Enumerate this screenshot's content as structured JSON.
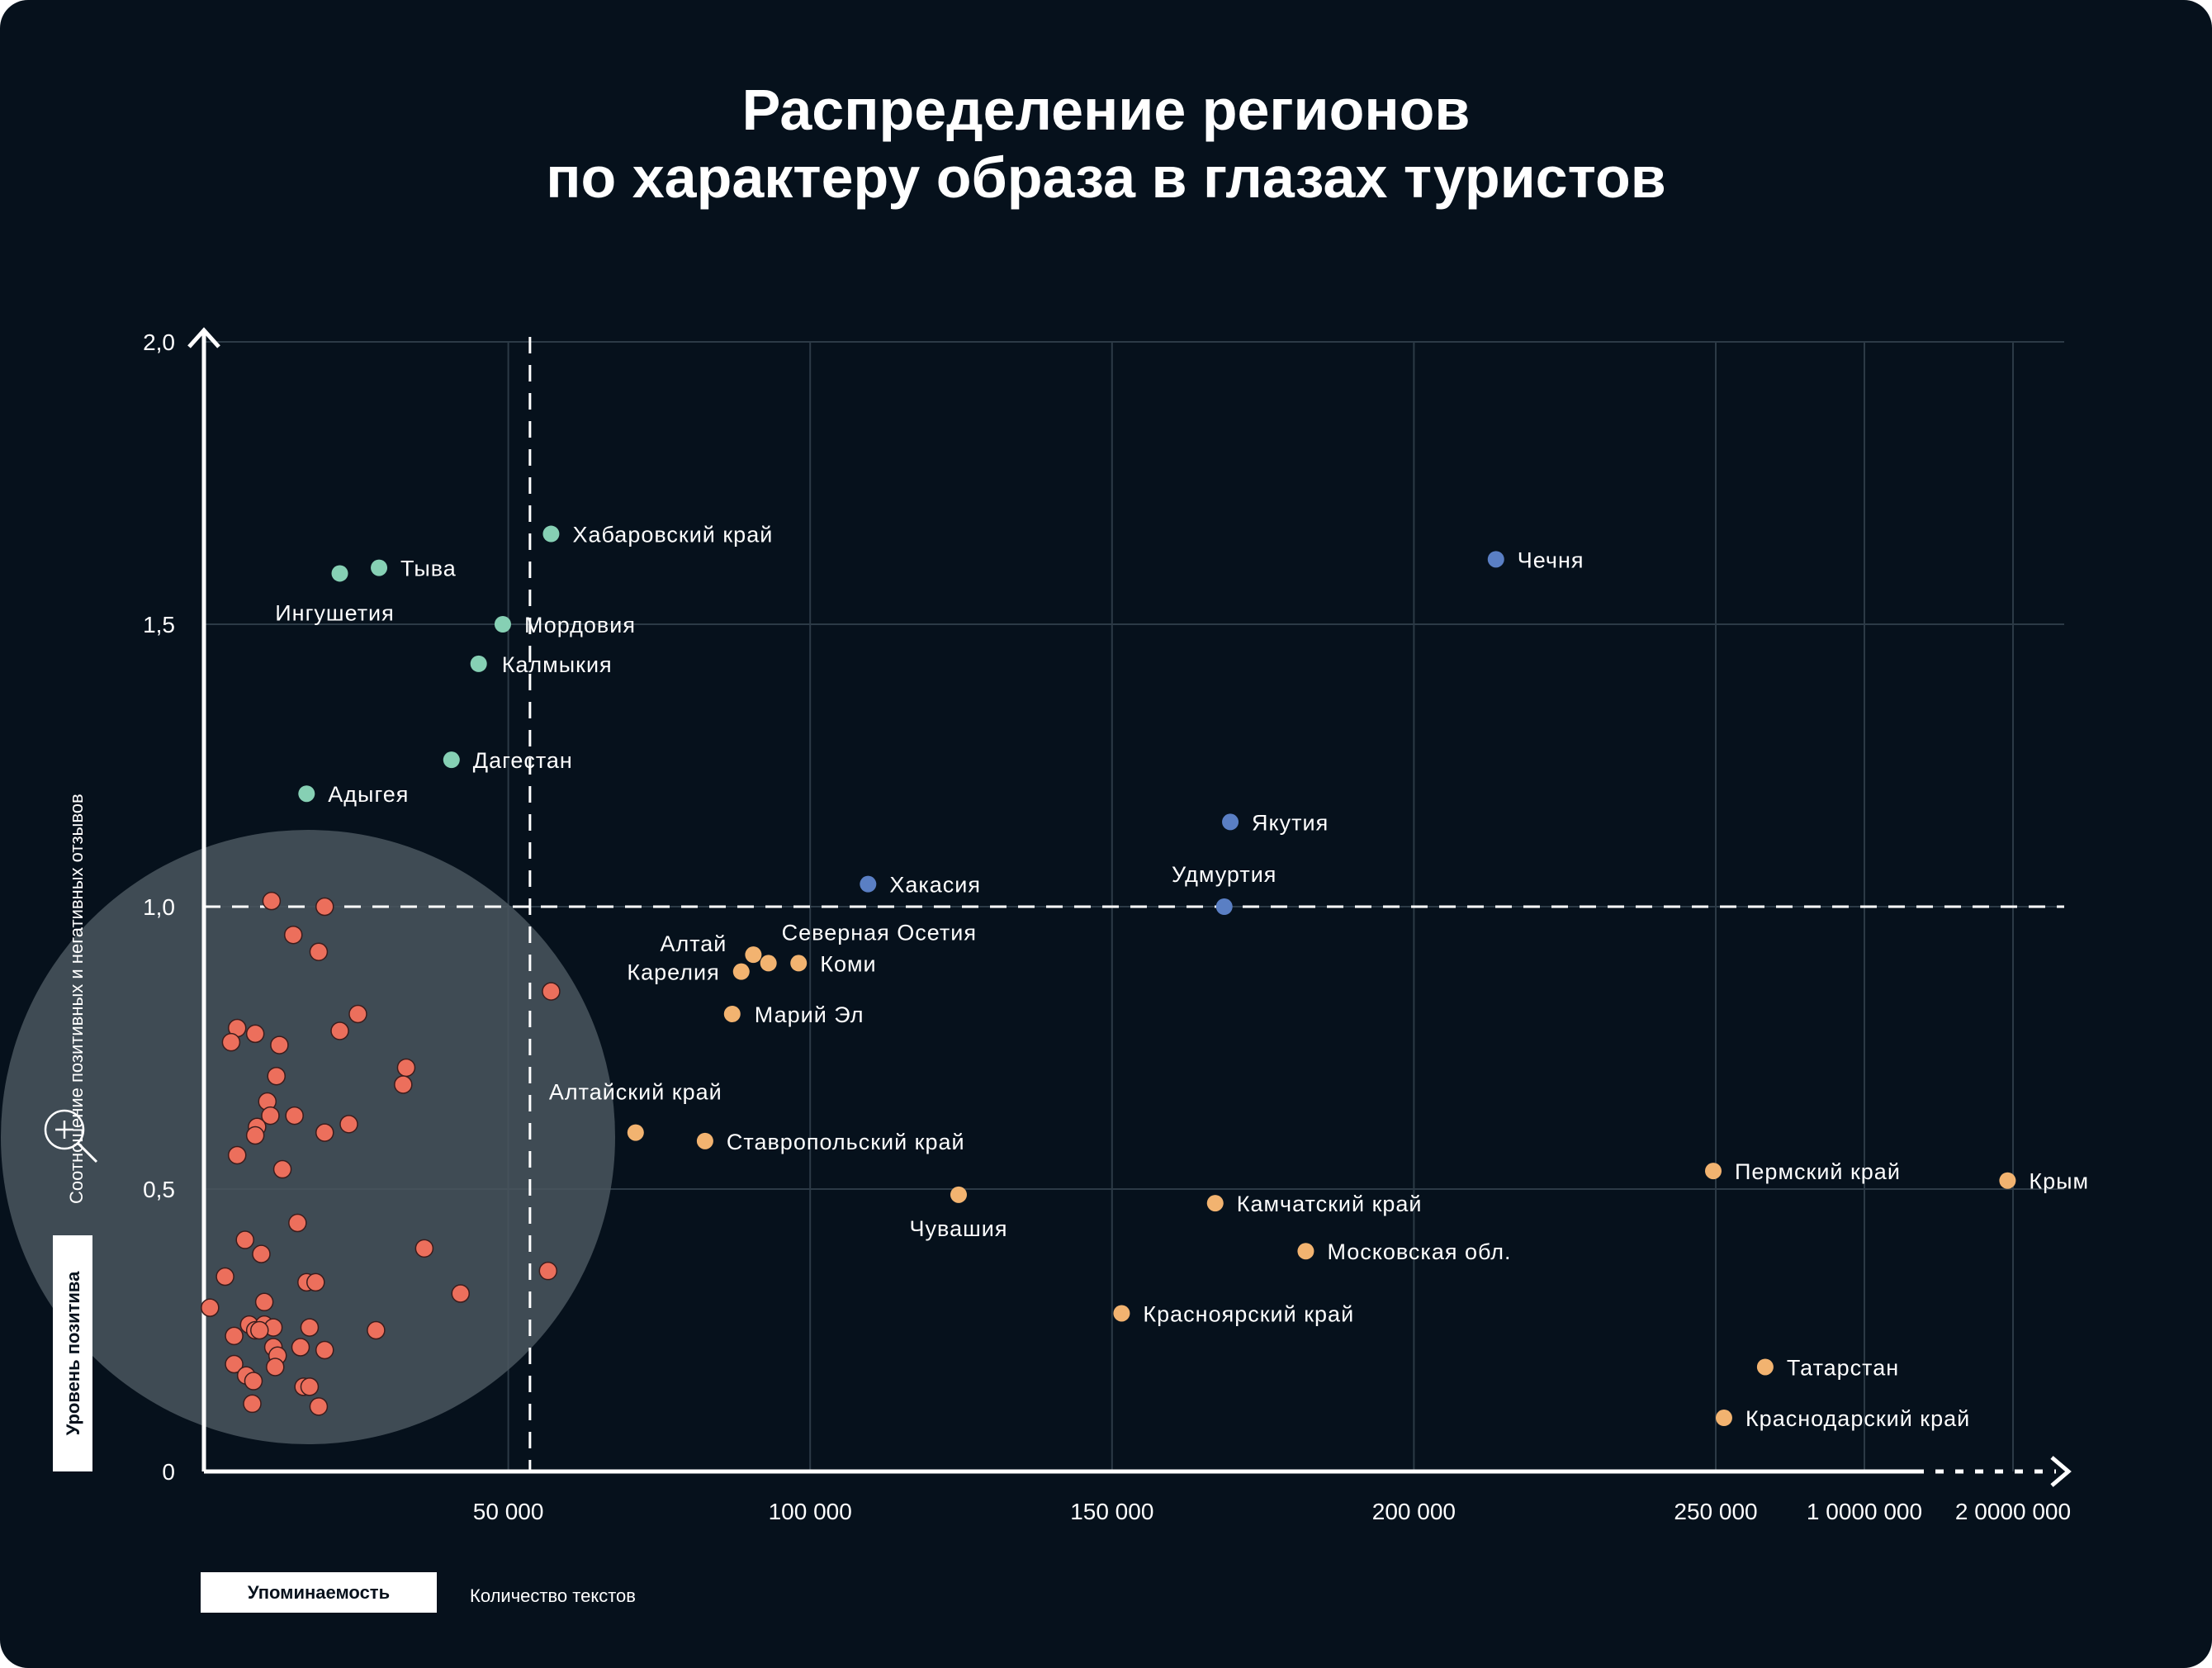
{
  "title_lines": [
    "Распределение регионов",
    "по характеру образа в глазах туристов"
  ],
  "colors": {
    "background": "#06111c",
    "green": "#86d0b4",
    "blue": "#5a7fc4",
    "orange": "#f2b370",
    "red": "#ec6f5c",
    "cluster": "#4a565e"
  },
  "chart_data": {
    "type": "scatter",
    "x_axis": {
      "box_label": "Упоминаемость",
      "caption": "Количество текстов",
      "tick_labels": [
        "50 000",
        "100 000",
        "150 000",
        "200 000",
        "250 000",
        "1 0000 000",
        "2 0000 000"
      ],
      "tick_values": [
        50000,
        100000,
        150000,
        200000,
        250000,
        1000000,
        2000000
      ],
      "scale": "broken: linear up to 250000, then compressed segment to 2000000",
      "xlim": [
        0,
        2000000
      ]
    },
    "y_axis": {
      "box_label": "Уровень позитива",
      "caption": "Соотношение позитивных и негативных отзывов",
      "tick_labels": [
        "0",
        "0,5",
        "1,0",
        "1,5",
        "2,0"
      ],
      "tick_values": [
        0,
        0.5,
        1.0,
        1.5,
        2.0
      ],
      "ylim": [
        0,
        2.0
      ]
    },
    "reference_lines": {
      "x": 54000,
      "y": 1.0
    },
    "grid": true,
    "series": [
      {
        "group": "green",
        "points": [
          {
            "label": "Хабаровский край",
            "x": 57500,
            "y": 1.66
          },
          {
            "label": "Тыва",
            "x": 29000,
            "y": 1.6
          },
          {
            "label": "Ингушетия",
            "x": 22500,
            "y": 1.59
          },
          {
            "label": "Мордовия",
            "x": 49500,
            "y": 1.5
          },
          {
            "label": "Калмыкия",
            "x": 45500,
            "y": 1.43
          },
          {
            "label": "Дагестан",
            "x": 41000,
            "y": 1.26
          },
          {
            "label": "Адыгея",
            "x": 17000,
            "y": 1.2
          }
        ]
      },
      {
        "group": "blue",
        "points": [
          {
            "label": "Чечня",
            "x": 214000,
            "y": 1.615
          },
          {
            "label": "Якутия",
            "x": 170000,
            "y": 1.15
          },
          {
            "label": "Хакасия",
            "x": 110000,
            "y": 1.04
          },
          {
            "label": "Удмуртия",
            "x": 169000,
            "y": 1.0
          }
        ]
      },
      {
        "group": "orange",
        "points": [
          {
            "label": "Алтай",
            "x": 91000,
            "y": 0.915
          },
          {
            "label": "Северная Осетия",
            "x": 93500,
            "y": 0.9
          },
          {
            "label": "Карелия",
            "x": 89000,
            "y": 0.885
          },
          {
            "label": "Коми",
            "x": 98500,
            "y": 0.9
          },
          {
            "label": "Марий Эл",
            "x": 87500,
            "y": 0.81
          },
          {
            "label": "Алтайский край",
            "x": 71500,
            "y": 0.6
          },
          {
            "label": "Ставропольский край",
            "x": 83000,
            "y": 0.585
          },
          {
            "label": "Чувашия",
            "x": 125000,
            "y": 0.49
          },
          {
            "label": "Камчатский край",
            "x": 167500,
            "y": 0.475
          },
          {
            "label": "Московская обл.",
            "x": 182500,
            "y": 0.39
          },
          {
            "label": "Красноярский край",
            "x": 152000,
            "y": 0.28
          },
          {
            "label": "Пермский край",
            "x": 250000,
            "y": 0.532
          },
          {
            "label": "Крым",
            "x": 1980000,
            "y": 0.515
          },
          {
            "label": "Татарстан",
            "x": 512000,
            "y": 0.185
          },
          {
            "label": "Краснодарский край",
            "x": 304000,
            "y": 0.095
          }
        ]
      },
      {
        "group": "red",
        "points": [
          {
            "x": 11200,
            "y": 1.01
          },
          {
            "x": 20000,
            "y": 1.0
          },
          {
            "x": 14800,
            "y": 0.95
          },
          {
            "x": 19000,
            "y": 0.92
          },
          {
            "x": 57500,
            "y": 0.85
          },
          {
            "x": 25500,
            "y": 0.81
          },
          {
            "x": 5500,
            "y": 0.785
          },
          {
            "x": 8500,
            "y": 0.775
          },
          {
            "x": 22500,
            "y": 0.78
          },
          {
            "x": 4500,
            "y": 0.76
          },
          {
            "x": 12500,
            "y": 0.755
          },
          {
            "x": 33500,
            "y": 0.715
          },
          {
            "x": 12000,
            "y": 0.7
          },
          {
            "x": 33000,
            "y": 0.685
          },
          {
            "x": 10500,
            "y": 0.655
          },
          {
            "x": 11000,
            "y": 0.63
          },
          {
            "x": 15000,
            "y": 0.63
          },
          {
            "x": 8800,
            "y": 0.61
          },
          {
            "x": 24000,
            "y": 0.615
          },
          {
            "x": 8500,
            "y": 0.595
          },
          {
            "x": 20000,
            "y": 0.6
          },
          {
            "x": 5500,
            "y": 0.56
          },
          {
            "x": 13000,
            "y": 0.535
          },
          {
            "x": 15500,
            "y": 0.44
          },
          {
            "x": 6800,
            "y": 0.41
          },
          {
            "x": 36500,
            "y": 0.395
          },
          {
            "x": 9500,
            "y": 0.385
          },
          {
            "x": 57000,
            "y": 0.355
          },
          {
            "x": 3500,
            "y": 0.345
          },
          {
            "x": 17000,
            "y": 0.335
          },
          {
            "x": 18500,
            "y": 0.335
          },
          {
            "x": 42500,
            "y": 0.315
          },
          {
            "x": 10000,
            "y": 0.3
          },
          {
            "x": 1000,
            "y": 0.29
          },
          {
            "x": 7500,
            "y": 0.26
          },
          {
            "x": 10000,
            "y": 0.26
          },
          {
            "x": 11500,
            "y": 0.255
          },
          {
            "x": 8500,
            "y": 0.25
          },
          {
            "x": 9200,
            "y": 0.25
          },
          {
            "x": 17500,
            "y": 0.255
          },
          {
            "x": 28500,
            "y": 0.25
          },
          {
            "x": 5000,
            "y": 0.24
          },
          {
            "x": 11500,
            "y": 0.22
          },
          {
            "x": 16000,
            "y": 0.22
          },
          {
            "x": 20000,
            "y": 0.215
          },
          {
            "x": 12200,
            "y": 0.205
          },
          {
            "x": 5000,
            "y": 0.19
          },
          {
            "x": 11800,
            "y": 0.185
          },
          {
            "x": 7000,
            "y": 0.17
          },
          {
            "x": 8200,
            "y": 0.16
          },
          {
            "x": 16500,
            "y": 0.15
          },
          {
            "x": 17500,
            "y": 0.15
          },
          {
            "x": 8000,
            "y": 0.12
          },
          {
            "x": 19000,
            "y": 0.115
          }
        ]
      }
    ]
  }
}
